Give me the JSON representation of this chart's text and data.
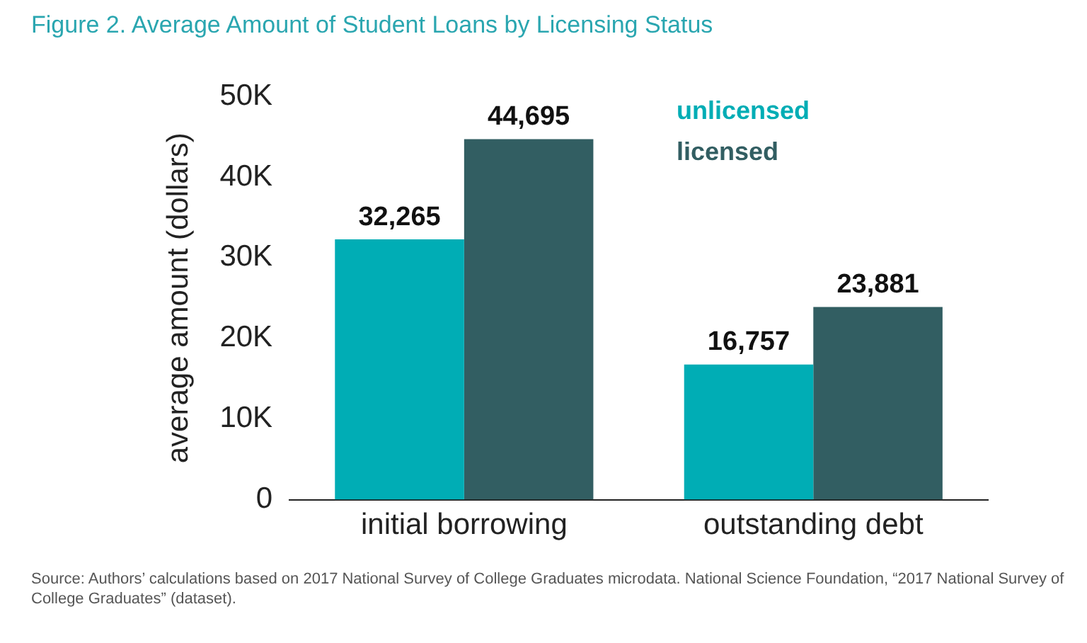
{
  "chart_data": {
    "type": "bar",
    "title": "Figure 2. Average Amount of Student Loans by Licensing Status",
    "ylabel": "average amount (dollars)",
    "categories": [
      "initial borrowing",
      "outstanding debt"
    ],
    "series": [
      {
        "name": "unlicensed",
        "color": "#00adb5",
        "values": [
          32265,
          16757
        ],
        "value_labels": [
          "32,265",
          "16,757"
        ]
      },
      {
        "name": "licensed",
        "color": "#325e62",
        "values": [
          44695,
          23881
        ],
        "value_labels": [
          "44,695",
          "23,881"
        ]
      }
    ],
    "ylim": [
      0,
      50000
    ],
    "yticks": [
      {
        "value": 0,
        "label": "0"
      },
      {
        "value": 10000,
        "label": "10K"
      },
      {
        "value": 20000,
        "label": "20K"
      },
      {
        "value": 30000,
        "label": "30K"
      },
      {
        "value": 40000,
        "label": "40K"
      },
      {
        "value": 50000,
        "label": "50K"
      }
    ],
    "grid": false,
    "legend": "top right",
    "annotations": [
      "Source: Authors’ calculations based on 2017 National Survey of College Graduates microdata. National Science Foundation, “2017 National Survey of College Graduates” (dataset)."
    ]
  }
}
